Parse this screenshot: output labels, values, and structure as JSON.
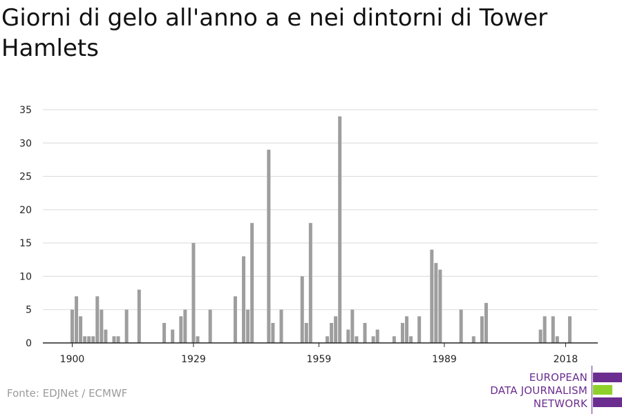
{
  "title": "Giorni di gelo all'anno a e nei dintorni di Tower Hamlets",
  "source": "Fonte: EDJNet / ECMWF",
  "logo": {
    "line1": "EUROPEAN",
    "line2": "DATA JOURNALISM",
    "line3": "NETWORK",
    "colors": {
      "purple": "#6b2d8f",
      "green": "#8fd12b"
    }
  },
  "chart_data": {
    "type": "bar",
    "title": "Giorni di gelo all'anno a e nei dintorni di Tower Hamlets",
    "xlabel": "",
    "ylabel": "",
    "bar_color": "#9e9e9e",
    "grid": true,
    "xlim": [
      1900,
      2019
    ],
    "ylim": [
      0,
      35
    ],
    "y_ticks": [
      0,
      5,
      10,
      15,
      20,
      25,
      30,
      35
    ],
    "x_tick_labels": [
      "1900",
      "1929",
      "1959",
      "1989",
      "2018"
    ],
    "x": [
      1900,
      1901,
      1902,
      1903,
      1904,
      1905,
      1906,
      1907,
      1908,
      1909,
      1910,
      1911,
      1912,
      1913,
      1914,
      1915,
      1916,
      1917,
      1918,
      1919,
      1920,
      1921,
      1922,
      1923,
      1924,
      1925,
      1926,
      1927,
      1928,
      1929,
      1930,
      1931,
      1932,
      1933,
      1934,
      1935,
      1936,
      1937,
      1938,
      1939,
      1940,
      1941,
      1942,
      1943,
      1944,
      1945,
      1946,
      1947,
      1948,
      1949,
      1950,
      1951,
      1952,
      1953,
      1954,
      1955,
      1956,
      1957,
      1958,
      1959,
      1960,
      1961,
      1962,
      1963,
      1964,
      1965,
      1966,
      1967,
      1968,
      1969,
      1970,
      1971,
      1972,
      1973,
      1974,
      1975,
      1976,
      1977,
      1978,
      1979,
      1980,
      1981,
      1982,
      1983,
      1984,
      1985,
      1986,
      1987,
      1988,
      1989,
      1990,
      1991,
      1992,
      1993,
      1994,
      1995,
      1996,
      1997,
      1998,
      1999,
      2000,
      2001,
      2002,
      2003,
      2004,
      2005,
      2006,
      2007,
      2008,
      2009,
      2010,
      2011,
      2012,
      2013,
      2014,
      2015,
      2016,
      2017,
      2018,
      2019
    ],
    "values": [
      5,
      7,
      4,
      1,
      1,
      1,
      7,
      5,
      2,
      0,
      1,
      1,
      0,
      5,
      0,
      0,
      8,
      0,
      0,
      0,
      0,
      0,
      3,
      0,
      2,
      0,
      4,
      5,
      0,
      15,
      1,
      0,
      0,
      5,
      0,
      0,
      0,
      0,
      0,
      7,
      0,
      13,
      5,
      18,
      0,
      0,
      0,
      29,
      3,
      0,
      5,
      0,
      0,
      0,
      0,
      10,
      3,
      18,
      0,
      0,
      0,
      1,
      3,
      4,
      34,
      0,
      2,
      5,
      1,
      0,
      3,
      0,
      1,
      2,
      0,
      0,
      0,
      1,
      0,
      3,
      4,
      1,
      0,
      4,
      0,
      0,
      14,
      12,
      11,
      0,
      0,
      0,
      0,
      5,
      0,
      0,
      1,
      0,
      4,
      6,
      0,
      0,
      0,
      0,
      0,
      0,
      0,
      0,
      0,
      0,
      0,
      0,
      2,
      4,
      0,
      4,
      1,
      0,
      0,
      4
    ]
  }
}
